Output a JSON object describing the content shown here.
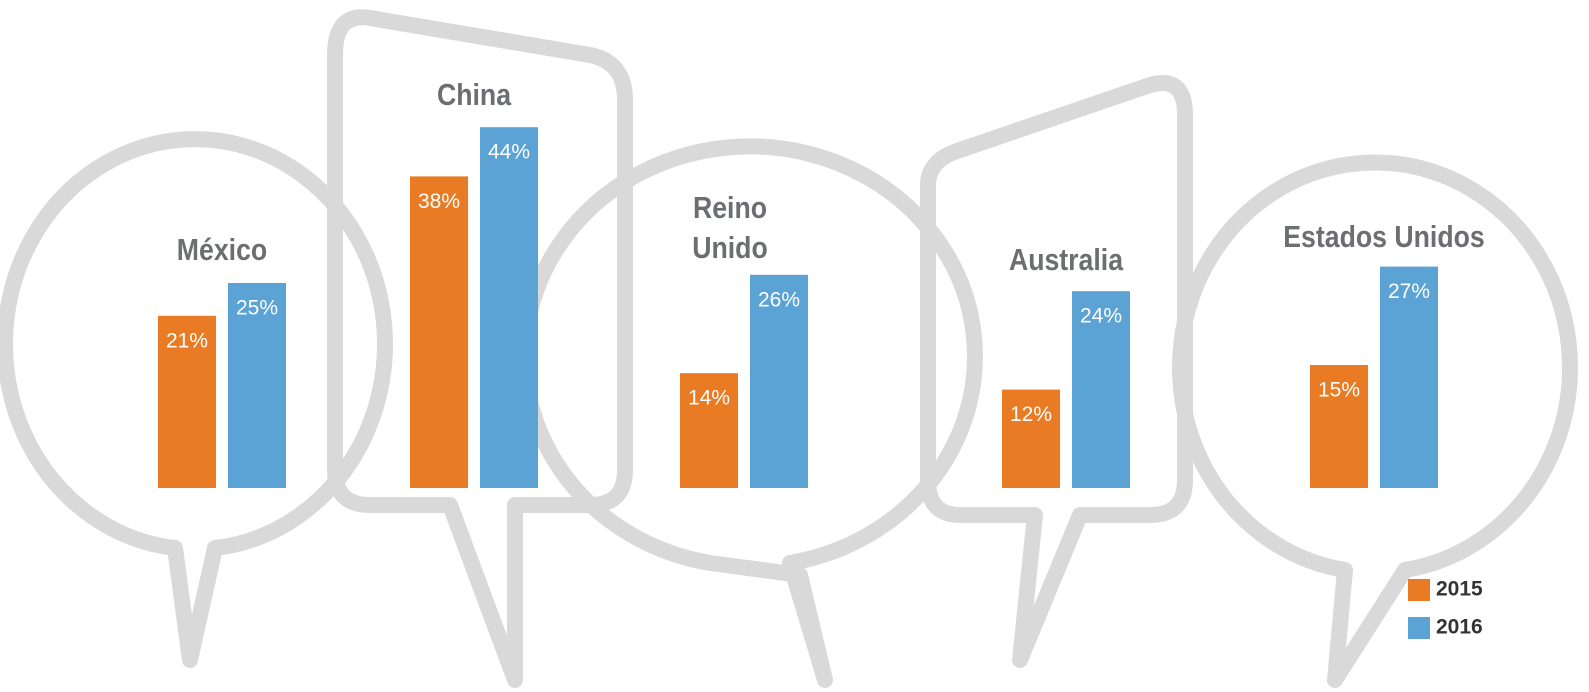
{
  "chart_data": {
    "type": "bar",
    "categories": [
      "México",
      "China",
      "Reino Unido",
      "Australia",
      "Estados Unidos"
    ],
    "series": [
      {
        "name": "2015",
        "color": "#e87b23",
        "values": [
          21,
          38,
          14,
          12,
          15
        ],
        "value_labels": [
          "21%",
          "38%",
          "14%",
          "12%",
          "15%"
        ]
      },
      {
        "name": "2016",
        "color": "#5aa3d4",
        "values": [
          25,
          44,
          26,
          24,
          27
        ],
        "value_labels": [
          "25%",
          "44%",
          "26%",
          "24%",
          "27%"
        ]
      }
    ],
    "ylim": [
      0,
      50
    ]
  }
}
